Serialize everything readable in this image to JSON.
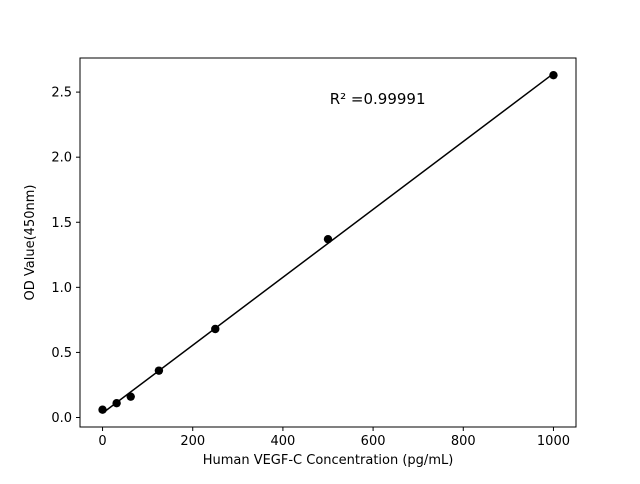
{
  "chart_data": {
    "type": "scatter",
    "title": "",
    "xlabel": "Human VEGF-C Concentration (pg/mL)",
    "ylabel": "OD Value(450nm)",
    "x": [
      0,
      31.25,
      62.5,
      125,
      250,
      500,
      1000
    ],
    "y": [
      0.06,
      0.11,
      0.16,
      0.36,
      0.68,
      1.37,
      2.63
    ],
    "fit_line": true,
    "annotation": {
      "text": "R² =0.99991",
      "x_frac": 0.6,
      "y_frac_from_top": 0.125
    },
    "xlim": [
      -50,
      1050
    ],
    "ylim": [
      -0.073,
      2.762
    ],
    "xticks": [
      0,
      200,
      400,
      600,
      800,
      1000
    ],
    "xtick_labels": [
      "0",
      "200",
      "400",
      "600",
      "800",
      "1000"
    ],
    "yticks": [
      0.0,
      0.5,
      1.0,
      1.5,
      2.0,
      2.5
    ],
    "ytick_labels": [
      "0.0",
      "0.5",
      "1.0",
      "1.5",
      "2.0",
      "2.5"
    ],
    "grid": false,
    "legend": "none",
    "marker_color": "#000000",
    "line_color": "#000000",
    "axis_color": "#000000",
    "background": "#ffffff"
  }
}
